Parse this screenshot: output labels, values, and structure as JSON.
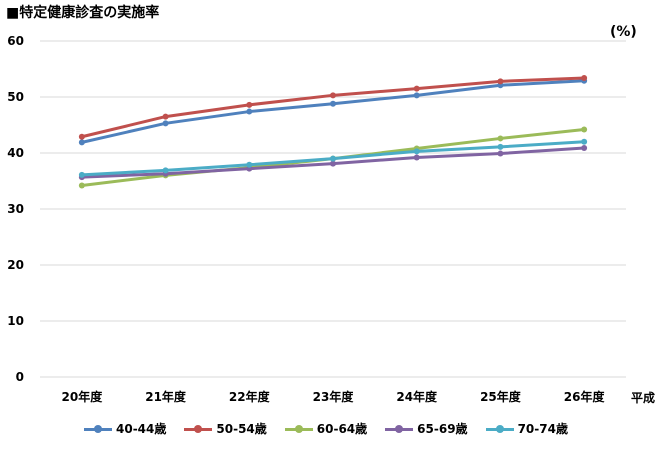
{
  "chart_data": {
    "type": "line",
    "title": "■特定健康診査の実施率",
    "ylabel": "(%)",
    "xlabel": "平成",
    "categories": [
      "20年度",
      "21年度",
      "22年度",
      "23年度",
      "24年度",
      "25年度",
      "26年度"
    ],
    "ylim": [
      0,
      60
    ],
    "yticks": [
      0,
      10,
      20,
      30,
      40,
      50,
      60
    ],
    "grid": true,
    "legend": "bottom",
    "series": [
      {
        "name": "40-44歳",
        "color": "#4F81BD",
        "values": [
          41.9,
          45.3,
          47.4,
          48.8,
          50.3,
          52.1,
          52.9
        ]
      },
      {
        "name": "50-54歳",
        "color": "#C0504D",
        "values": [
          42.9,
          46.5,
          48.6,
          50.3,
          51.5,
          52.8,
          53.4
        ]
      },
      {
        "name": "60-64歳",
        "color": "#9BBB59",
        "values": [
          34.2,
          36.0,
          37.4,
          39.0,
          40.8,
          42.6,
          44.2
        ]
      },
      {
        "name": "65-69歳",
        "color": "#8064A2",
        "values": [
          35.7,
          36.3,
          37.2,
          38.1,
          39.2,
          39.9,
          40.9
        ]
      },
      {
        "name": "70-74歳",
        "color": "#4BACC6",
        "values": [
          36.1,
          36.9,
          37.9,
          39.0,
          40.3,
          41.1,
          42.0
        ]
      }
    ]
  }
}
